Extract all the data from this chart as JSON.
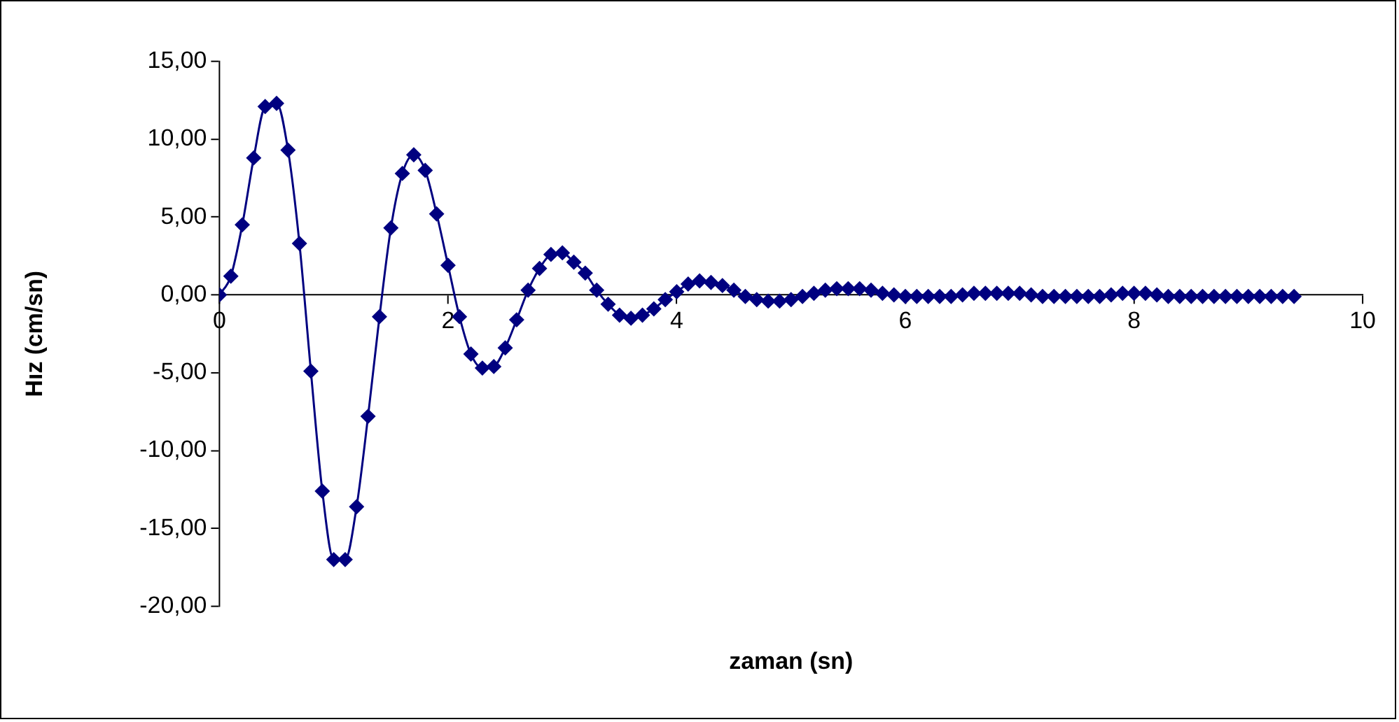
{
  "chart_data": {
    "type": "line",
    "xlabel": "zaman (sn)",
    "ylabel": "Hız (cm/sn)",
    "marker": "diamond",
    "x": [
      0,
      0.1,
      0.2,
      0.3,
      0.4,
      0.5,
      0.6,
      0.7,
      0.8,
      0.9,
      1.0,
      1.1,
      1.2,
      1.3,
      1.4,
      1.5,
      1.6,
      1.7,
      1.8,
      1.9,
      2.0,
      2.1,
      2.2,
      2.3,
      2.4,
      2.5,
      2.6,
      2.7,
      2.8,
      2.9,
      3.0,
      3.1,
      3.2,
      3.3,
      3.4,
      3.5,
      3.6,
      3.7,
      3.8,
      3.9,
      4.0,
      4.1,
      4.2,
      4.3,
      4.4,
      4.5,
      4.6,
      4.7,
      4.8,
      4.9,
      5.0,
      5.1,
      5.2,
      5.3,
      5.4,
      5.5,
      5.6,
      5.7,
      5.8,
      5.9,
      6.0,
      6.1,
      6.2,
      6.3,
      6.4,
      6.5,
      6.6,
      6.7,
      6.8,
      6.9,
      7.0,
      7.1,
      7.2,
      7.3,
      7.4,
      7.5,
      7.6,
      7.7,
      7.8,
      7.9,
      8.0,
      8.1,
      8.2,
      8.3,
      8.4,
      8.5,
      8.6,
      8.7,
      8.8,
      8.9,
      9.0,
      9.1,
      9.2,
      9.3,
      9.4
    ],
    "series": [
      {
        "color": "#000080",
        "values": [
          0,
          1.2,
          4.5,
          8.8,
          12.1,
          12.3,
          9.3,
          3.3,
          -4.9,
          -12.6,
          -17.0,
          -17.0,
          -13.6,
          -7.8,
          -1.4,
          4.3,
          7.8,
          9.0,
          8.0,
          5.2,
          1.9,
          -1.4,
          -3.8,
          -4.7,
          -4.6,
          -3.4,
          -1.6,
          0.3,
          1.7,
          2.6,
          2.7,
          2.1,
          1.4,
          0.3,
          -0.6,
          -1.3,
          -1.5,
          -1.3,
          -0.9,
          -0.3,
          0.2,
          0.7,
          0.9,
          0.8,
          0.6,
          0.3,
          -0.1,
          -0.3,
          -0.4,
          -0.4,
          -0.3,
          -0.1,
          0.1,
          0.3,
          0.4,
          0.4,
          0.4,
          0.3,
          0.1,
          0.0,
          -0.1,
          -0.1,
          -0.1,
          -0.1,
          -0.1,
          0.0,
          0.1,
          0.1,
          0.1,
          0.1,
          0.1,
          0.0,
          -0.1,
          -0.1,
          -0.1,
          -0.1,
          -0.1,
          -0.1,
          0.0,
          0.1,
          0.1,
          0.1,
          0.0,
          -0.1,
          -0.1,
          -0.1,
          -0.1,
          -0.1,
          -0.1,
          -0.1,
          -0.1,
          -0.1,
          -0.1,
          -0.1,
          -0.1
        ]
      }
    ],
    "xlim": [
      0,
      10
    ],
    "xticks": [
      0,
      2,
      4,
      6,
      8,
      10
    ],
    "ylim": [
      -20,
      15
    ],
    "yticks": [
      {
        "value": -20,
        "label": "-20,00"
      },
      {
        "value": -15,
        "label": "-15,00"
      },
      {
        "value": -10,
        "label": "-10,00"
      },
      {
        "value": -5,
        "label": "-5,00"
      },
      {
        "value": 0,
        "label": "0,00"
      },
      {
        "value": 5,
        "label": "5,00"
      },
      {
        "value": 10,
        "label": "10,00"
      },
      {
        "value": 15,
        "label": "15,00"
      }
    ]
  }
}
